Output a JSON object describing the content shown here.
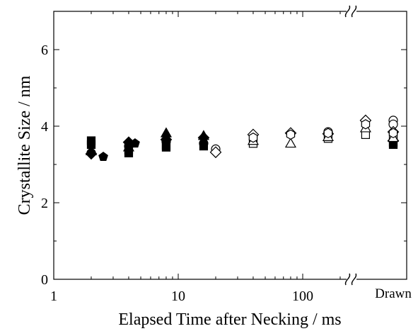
{
  "chart_data": {
    "type": "scatter",
    "title": "",
    "xlabel": "Elapsed Time after Necking / ms",
    "ylabel": "Crystallite Size / nm",
    "xscale": "log",
    "xlim": [
      1,
      400
    ],
    "ylim": [
      0,
      7
    ],
    "x_ticks": [
      {
        "value": 1,
        "label": "1"
      },
      {
        "value": 10,
        "label": "10"
      },
      {
        "value": 100,
        "label": "100"
      }
    ],
    "y_ticks": [
      {
        "value": 0,
        "label": "0"
      },
      {
        "value": 2,
        "label": "2"
      },
      {
        "value": 4,
        "label": "4"
      },
      {
        "value": 6,
        "label": "6"
      }
    ],
    "axis_break": "~ symbols on top and bottom axes before the Drawn position",
    "extra_x_category": "Drawn",
    "grid": false,
    "legend": "none",
    "series": [
      {
        "marker": "filled-square",
        "points": [
          [
            2,
            3.62
          ],
          [
            2,
            3.52
          ],
          [
            4,
            3.3
          ],
          [
            4,
            3.38
          ],
          [
            8,
            3.45
          ],
          [
            8,
            3.5
          ],
          [
            16,
            3.48
          ],
          [
            "Drawn",
            3.58
          ],
          [
            "Drawn",
            3.52
          ]
        ]
      },
      {
        "marker": "filled-diamond",
        "points": [
          [
            2,
            3.28
          ],
          [
            4,
            3.58
          ],
          [
            8,
            3.65
          ],
          [
            16,
            3.7
          ],
          [
            "Drawn",
            3.62
          ]
        ]
      },
      {
        "marker": "filled-triangle",
        "points": [
          [
            2,
            3.35
          ],
          [
            4,
            3.45
          ],
          [
            8,
            3.82
          ],
          [
            16,
            3.75
          ]
        ]
      },
      {
        "marker": "filled-pentagon",
        "points": [
          [
            2.5,
            3.2
          ],
          [
            4.5,
            3.55
          ],
          [
            "Drawn",
            3.6
          ]
        ]
      },
      {
        "marker": "filled-circle",
        "points": [
          [
            2,
            3.3
          ],
          [
            4,
            3.48
          ],
          [
            8,
            3.6
          ],
          [
            16,
            3.55
          ]
        ]
      },
      {
        "marker": "open-circle",
        "points": [
          [
            20,
            3.4
          ],
          [
            160,
            3.85
          ],
          [
            "Drawn",
            4.15
          ],
          [
            "Drawn",
            4.05
          ]
        ]
      },
      {
        "marker": "open-diamond",
        "points": [
          [
            20,
            3.32
          ],
          [
            40,
            3.78
          ],
          [
            80,
            3.82
          ],
          [
            160,
            3.8
          ],
          [
            320,
            4.15
          ],
          [
            "Drawn",
            3.85
          ]
        ]
      },
      {
        "marker": "open-square",
        "points": [
          [
            40,
            3.55
          ],
          [
            160,
            3.68
          ],
          [
            320,
            3.78
          ],
          [
            "Drawn",
            3.78
          ]
        ]
      },
      {
        "marker": "open-triangle",
        "points": [
          [
            40,
            3.62
          ],
          [
            80,
            3.55
          ],
          [
            160,
            3.72
          ],
          [
            320,
            3.95
          ],
          [
            "Drawn",
            3.7
          ]
        ]
      },
      {
        "marker": "open-hexagon",
        "points": [
          [
            40,
            3.7
          ],
          [
            80,
            3.78
          ],
          [
            160,
            3.82
          ],
          [
            320,
            4.05
          ],
          [
            "Drawn",
            3.82
          ]
        ]
      }
    ]
  }
}
